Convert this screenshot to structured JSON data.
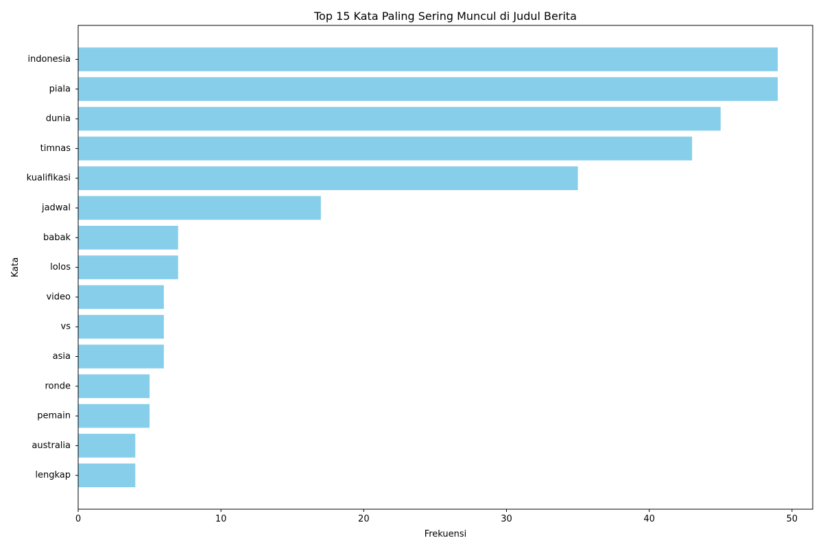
{
  "chart_data": {
    "type": "bar",
    "orientation": "horizontal",
    "title": "Top 15 Kata Paling Sering Muncul di Judul Berita",
    "xlabel": "Frekuensi",
    "ylabel": "Kata",
    "categories": [
      "indonesia",
      "piala",
      "dunia",
      "timnas",
      "kualifikasi",
      "jadwal",
      "babak",
      "lolos",
      "video",
      "vs",
      "asia",
      "ronde",
      "pemain",
      "australia",
      "lengkap"
    ],
    "values": [
      49,
      49,
      45,
      43,
      35,
      17,
      7,
      7,
      6,
      6,
      6,
      5,
      5,
      4,
      4
    ],
    "xlim": [
      0,
      51.45
    ],
    "xticks": [
      0,
      10,
      20,
      30,
      40,
      50
    ],
    "grid": false,
    "bar_color": "#87CEEB"
  }
}
